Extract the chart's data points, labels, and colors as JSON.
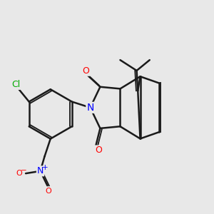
{
  "background_color": "#e8e8e8",
  "bond_color": "#1a1a1a",
  "bond_width": 1.8,
  "atom_colors": {
    "O": "#ff0000",
    "N": "#0000ff",
    "Cl": "#00aa00",
    "C": "#1a1a1a"
  },
  "font_size_atoms": 9,
  "font_size_small": 7.5
}
